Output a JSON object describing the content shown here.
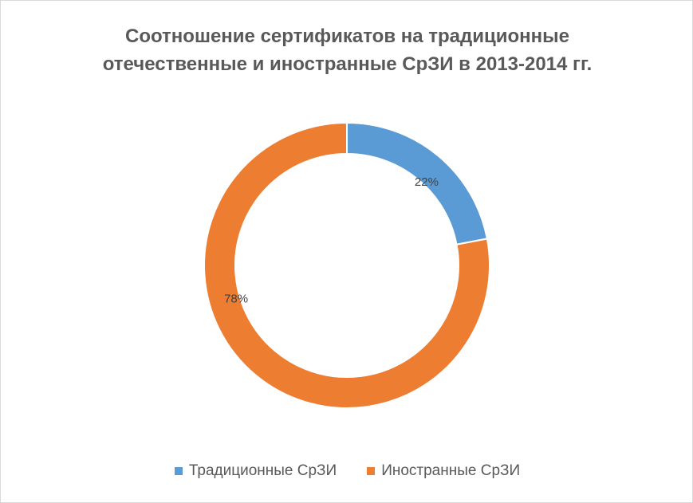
{
  "chart_data": {
    "type": "pie",
    "variant": "doughnut",
    "title_lines": [
      "Соотношение сертификатов на традиционные",
      "отечественные и иностранные СрЗИ в 2013-2014 гг."
    ],
    "slices": [
      {
        "label": "Традиционные СрЗИ",
        "value": 22,
        "data_label": "22%",
        "color": "#5b9bd5"
      },
      {
        "label": "Иностранные СрЗИ",
        "value": 78,
        "data_label": "78%",
        "color": "#ed7d31"
      }
    ],
    "legend_position": "bottom"
  }
}
